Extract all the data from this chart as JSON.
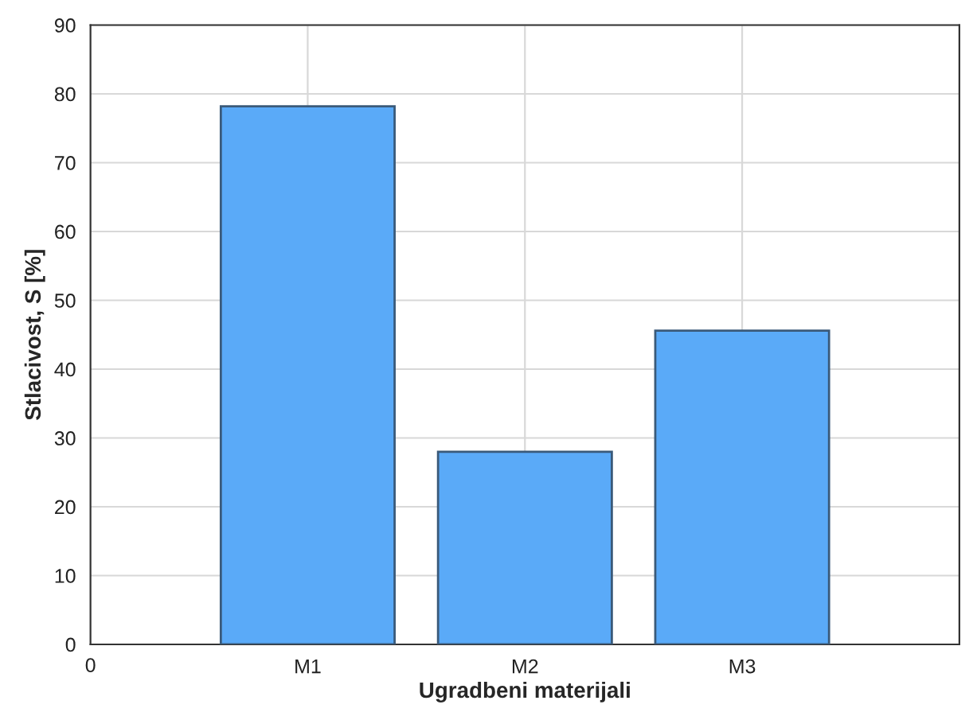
{
  "chart_data": {
    "type": "bar",
    "xlabel": "Ugradbeni materijali",
    "ylabel": "Stlacivost, S [%]",
    "categories": [
      "M1",
      "M2",
      "M3"
    ],
    "series": [
      {
        "color": "#5aaaf8",
        "values": [
          78.2,
          28.0,
          45.6
        ]
      }
    ],
    "annotations": [
      "0"
    ],
    "ylim": [
      0,
      90
    ],
    "yticks": [
      0,
      10,
      20,
      30,
      40,
      50,
      60,
      70,
      80,
      90
    ],
    "grid": true
  }
}
